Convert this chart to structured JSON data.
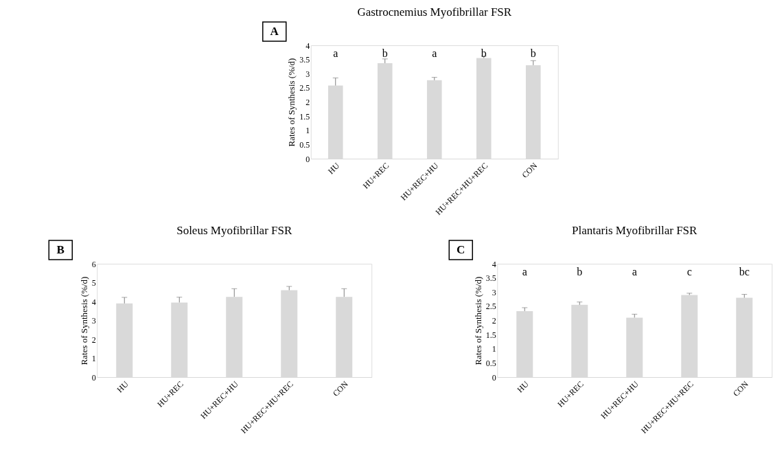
{
  "chart_data": [
    {
      "type": "bar",
      "title": "Gastrocnemius Myofibrillar FSR",
      "ylabel": "Rates of Synthesis (%/d)",
      "categories": [
        "HU",
        "HU+REC",
        "HU+REC+HU",
        "HU+REC+HU+REC",
        "CON"
      ],
      "values": [
        2.58,
        3.37,
        2.77,
        3.55,
        3.3
      ],
      "errors": [
        [
          2.58,
          2.85
        ],
        [
          3.37,
          3.52
        ],
        [
          2.77,
          2.87
        ],
        [
          3.55,
          3.62
        ],
        [
          3.3,
          3.46
        ]
      ],
      "color": "#d9d9d9",
      "ylim": [
        0,
        4
      ],
      "yticks": [
        0,
        0.5,
        1,
        1.5,
        2,
        2.5,
        3,
        3.5,
        4
      ],
      "grid": false,
      "annotations": [
        "A",
        "a",
        "b",
        "a",
        "b",
        "b"
      ]
    },
    {
      "type": "bar",
      "title": "Soleus Myofibrillar FSR",
      "ylabel": "Rates of Synthesis (%/d)",
      "categories": [
        "HU",
        "HU+REC",
        "HU+REC+HU",
        "HU+REC+HU+REC",
        "CON"
      ],
      "values": [
        3.9,
        3.95,
        4.25,
        4.6,
        4.25
      ],
      "errors": [
        [
          3.9,
          4.22
        ],
        [
          3.95,
          4.23
        ],
        [
          4.25,
          4.68
        ],
        [
          4.6,
          4.8
        ],
        [
          4.25,
          4.68
        ]
      ],
      "color": "#d9d9d9",
      "ylim": [
        0,
        6
      ],
      "yticks": [
        0,
        1,
        2,
        3,
        4,
        5,
        6
      ],
      "grid": false,
      "annotations": [
        "B"
      ]
    },
    {
      "type": "bar",
      "title": "Plantaris Myofibrillar FSR",
      "ylabel": "Rates of Synthesis (%/d)",
      "categories": [
        "HU",
        "HU+REC",
        "HU+REC+HU",
        "HU+REC+HU+REC",
        "CON"
      ],
      "values": [
        2.33,
        2.55,
        2.1,
        2.9,
        2.8
      ],
      "errors": [
        [
          2.33,
          2.45
        ],
        [
          2.55,
          2.65
        ],
        [
          2.1,
          2.22
        ],
        [
          2.9,
          2.96
        ],
        [
          2.8,
          2.92
        ]
      ],
      "color": "#d9d9d9",
      "ylim": [
        0,
        4
      ],
      "yticks": [
        0,
        0.5,
        1,
        1.5,
        2,
        2.5,
        3,
        3.5,
        4
      ],
      "grid": false,
      "annotations": [
        "C",
        "a",
        "b",
        "a",
        "c",
        "bc"
      ]
    }
  ]
}
